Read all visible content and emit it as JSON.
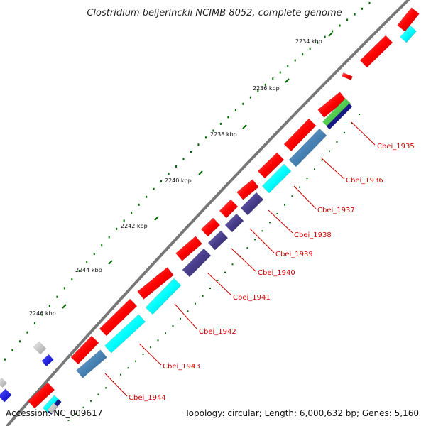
{
  "title": "Clostridium beijerinckii NCIMB 8052, complete genome",
  "footer": {
    "accession": "Accession: NC_009617",
    "stats": "Topology: circular; Length: 6,000,632 bp; Genes: 5,160"
  },
  "kbp_ticks": [
    "2234 kbp",
    "2236 kbp",
    "2238 kbp",
    "2240 kbp",
    "2242 kbp",
    "2244 kbp",
    "2246 kbp"
  ],
  "gene_labels": [
    "Cbei_1935",
    "Cbei_1936",
    "Cbei_1937",
    "Cbei_1938",
    "Cbei_1939",
    "Cbei_1940",
    "Cbei_1941",
    "Cbei_1942",
    "Cbei_1943",
    "Cbei_1944"
  ],
  "colors": {
    "cds": "#ff0000",
    "cyan": "#00ffff",
    "steel_blue": "#4682b4",
    "dark_slate": "#483d8b",
    "navy": "#000080",
    "green": "#33cc33",
    "blue": "#0000ff",
    "silver": "#c0c0c0",
    "backbone": "#777777",
    "tick": "#006600",
    "label": "#cc0000"
  }
}
